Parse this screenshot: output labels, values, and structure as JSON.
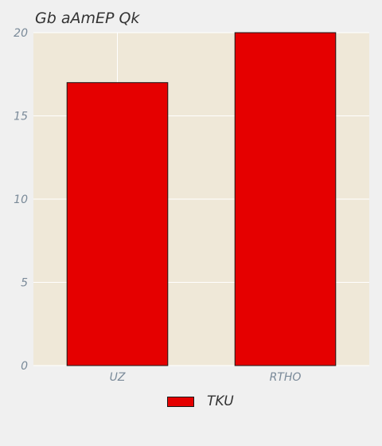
{
  "chart_data": {
    "type": "bar",
    "title": "Gb aAmEP Qk",
    "categories": [
      "UZ",
      "RTHO"
    ],
    "series": [
      {
        "name": "TKU",
        "values": [
          17,
          20
        ],
        "color": "#e50000"
      }
    ],
    "ylim": [
      0,
      20
    ],
    "yticks": [
      0,
      5,
      10,
      15,
      20
    ],
    "grid": true,
    "legend_position": "bottom-center",
    "colors": {
      "background": "#efe8d8",
      "grid": "#ffffff",
      "bar_edge": "#1a1a1a",
      "tick": "#7a8a99"
    }
  }
}
